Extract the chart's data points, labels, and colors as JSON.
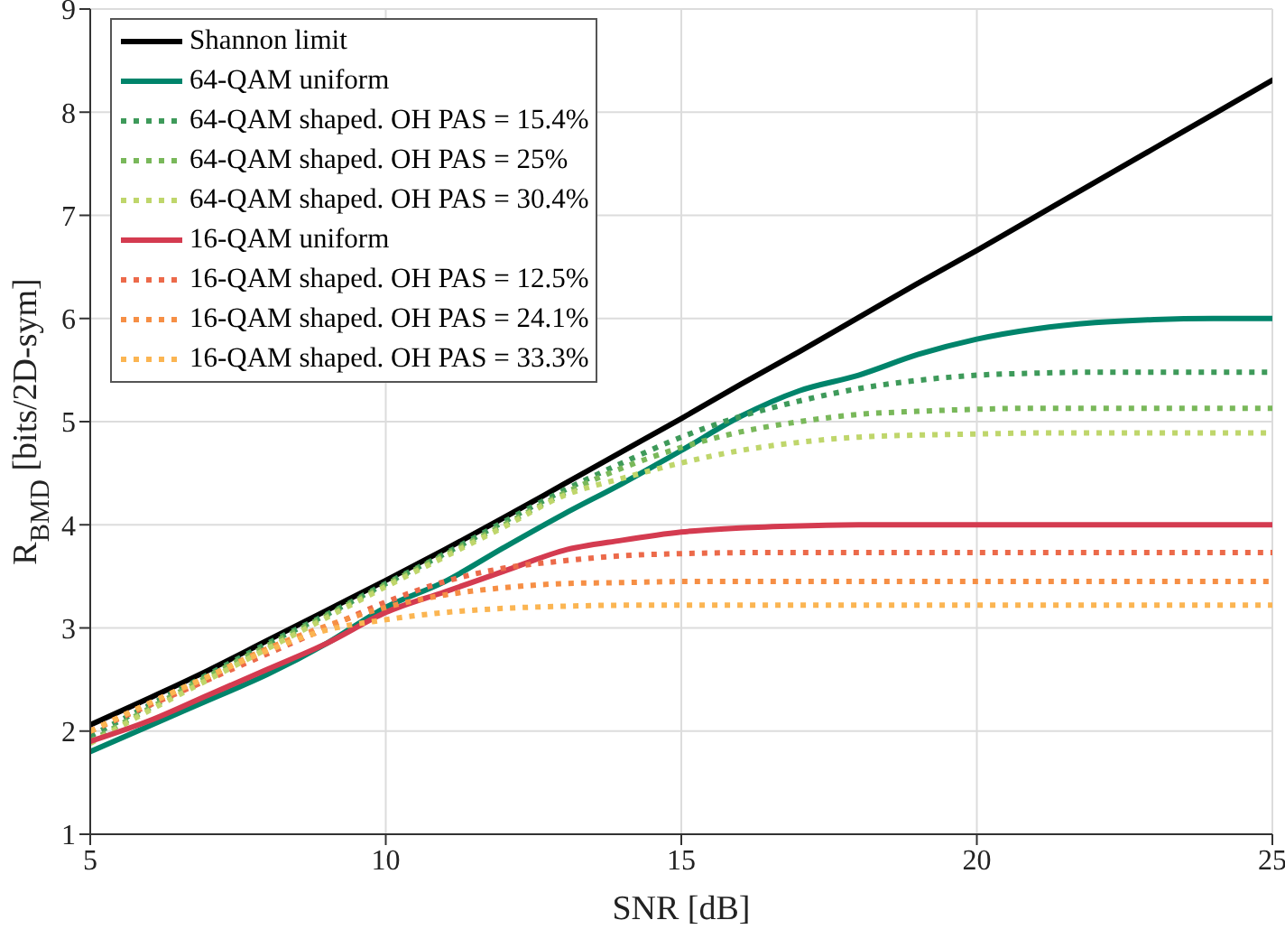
{
  "chart_data": {
    "type": "line",
    "xlabel": "SNR [dB]",
    "ylabel": "R$_{BMD}$ [bits/2D-sym]",
    "x": [
      5,
      6,
      7,
      8,
      9,
      10,
      11,
      12,
      13,
      14,
      15,
      16,
      17,
      18,
      19,
      20,
      21,
      22,
      23,
      24,
      25
    ],
    "xlim": [
      5,
      25
    ],
    "xticks": [
      5,
      10,
      15,
      20,
      25
    ],
    "ylim": [
      1,
      9
    ],
    "yticks": [
      1,
      2,
      3,
      4,
      5,
      6,
      7,
      8,
      9
    ],
    "grid": true,
    "legend": "top left",
    "marker": "none",
    "series": [
      {
        "name": "Shannon limit",
        "color": "#000000",
        "line_style": "solid",
        "values": [
          2.06,
          2.32,
          2.59,
          2.88,
          3.17,
          3.46,
          3.76,
          4.07,
          4.39,
          4.71,
          5.03,
          5.36,
          5.68,
          6.01,
          6.34,
          6.66,
          6.99,
          7.32,
          7.65,
          7.98,
          8.31
        ]
      },
      {
        "name": "64-QAM uniform",
        "color": "#00846b",
        "line_style": "solid",
        "values": [
          1.8,
          2.05,
          2.3,
          2.55,
          2.85,
          3.2,
          3.45,
          3.78,
          4.1,
          4.4,
          4.72,
          5.05,
          5.3,
          5.45,
          5.65,
          5.8,
          5.9,
          5.96,
          5.99,
          6.0,
          6.0
        ]
      },
      {
        "name": "64-QAM shaped. OH PAS = 15.4%",
        "color": "#3e9a5a",
        "line_style": "dotted",
        "values": [
          1.95,
          2.25,
          2.55,
          2.85,
          3.13,
          3.43,
          3.72,
          4.03,
          4.33,
          4.6,
          4.85,
          5.05,
          5.2,
          5.32,
          5.4,
          5.45,
          5.47,
          5.48,
          5.48,
          5.48,
          5.48
        ]
      },
      {
        "name": "64-QAM shaped. OH PAS = 25%",
        "color": "#79b85a",
        "line_style": "dotted",
        "values": [
          1.9,
          2.22,
          2.53,
          2.83,
          3.12,
          3.42,
          3.71,
          4.0,
          4.3,
          4.55,
          4.75,
          4.9,
          5.0,
          5.07,
          5.1,
          5.12,
          5.13,
          5.13,
          5.13,
          5.13,
          5.13
        ]
      },
      {
        "name": "64-QAM shaped. OH PAS = 30.4%",
        "color": "#bfd66b",
        "line_style": "dotted",
        "values": [
          1.88,
          2.2,
          2.5,
          2.8,
          3.1,
          3.4,
          3.69,
          3.98,
          4.28,
          4.45,
          4.6,
          4.72,
          4.8,
          4.85,
          4.87,
          4.88,
          4.89,
          4.89,
          4.89,
          4.89,
          4.89
        ]
      },
      {
        "name": "16-QAM uniform",
        "color": "#d43b50",
        "line_style": "solid",
        "values": [
          1.9,
          2.1,
          2.35,
          2.6,
          2.85,
          3.15,
          3.35,
          3.55,
          3.75,
          3.85,
          3.93,
          3.97,
          3.99,
          4.0,
          4.0,
          4.0,
          4.0,
          4.0,
          4.0,
          4.0,
          4.0
        ]
      },
      {
        "name": "16-QAM shaped. OH PAS = 12.5%",
        "color": "#ec6a4a",
        "line_style": "dotted",
        "values": [
          2.0,
          2.25,
          2.5,
          2.75,
          3.0,
          3.25,
          3.45,
          3.58,
          3.65,
          3.7,
          3.72,
          3.73,
          3.73,
          3.73,
          3.73,
          3.73,
          3.73,
          3.73,
          3.73,
          3.73,
          3.73
        ]
      },
      {
        "name": "16-QAM shaped. OH PAS = 24.1%",
        "color": "#f68f45",
        "line_style": "dotted",
        "values": [
          2.0,
          2.27,
          2.53,
          2.8,
          3.02,
          3.2,
          3.32,
          3.39,
          3.43,
          3.44,
          3.45,
          3.45,
          3.45,
          3.45,
          3.45,
          3.45,
          3.45,
          3.45,
          3.45,
          3.45,
          3.45
        ]
      },
      {
        "name": "16-QAM shaped. OH PAS = 33.3%",
        "color": "#fbb552",
        "line_style": "dotted",
        "values": [
          2.0,
          2.27,
          2.53,
          2.78,
          2.98,
          3.08,
          3.15,
          3.19,
          3.21,
          3.22,
          3.22,
          3.22,
          3.22,
          3.22,
          3.22,
          3.22,
          3.22,
          3.22,
          3.22,
          3.22,
          3.22
        ]
      }
    ]
  }
}
